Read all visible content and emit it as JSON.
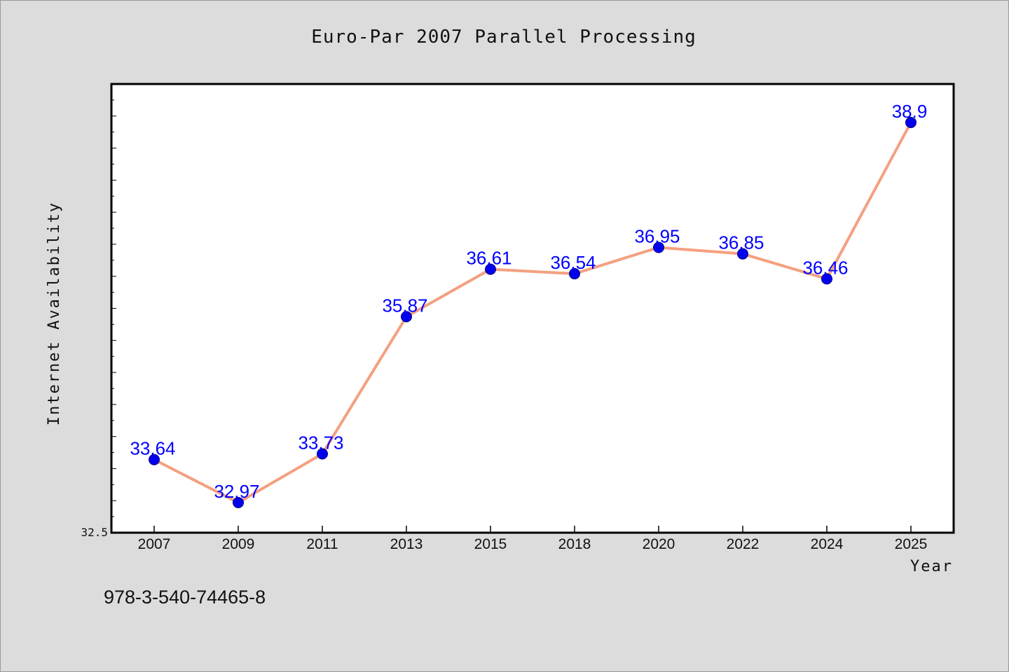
{
  "chart_data": {
    "type": "line",
    "title": "Euro-Par 2007 Parallel Processing",
    "xlabel": "Year",
    "ylabel": "Internet Availability",
    "categories": [
      "2007",
      "2009",
      "2011",
      "2013",
      "2015",
      "2018",
      "2020",
      "2022",
      "2024",
      "2025"
    ],
    "series": [
      {
        "values": [
          33.64,
          32.97,
          33.73,
          35.87,
          36.61,
          36.54,
          36.95,
          36.85,
          36.46,
          38.9
        ],
        "labels": [
          "33.64",
          "32.97",
          "33.73",
          "35.87",
          "36.61",
          "36.54",
          "36.95",
          "36.85",
          "36.46",
          "38.9"
        ]
      }
    ],
    "ylim": [
      32.5,
      39.5
    ],
    "y_tick_labels": [
      "32.5"
    ],
    "grid": false,
    "colors": {
      "line": "#f4a080",
      "marker": "#0000ee",
      "marker_stroke": "#000080",
      "data_label": "#0000ff",
      "plot_background": "#ffffff",
      "page_background": "#dcdcdc"
    }
  },
  "footnote": "978-3-540-74465-8"
}
